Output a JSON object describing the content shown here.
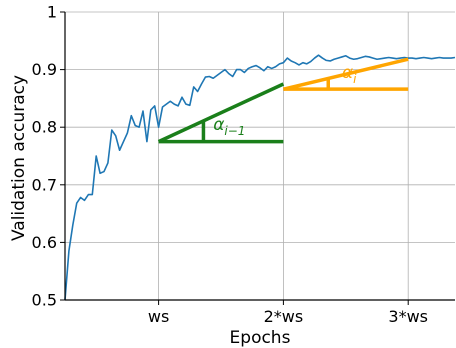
{
  "chart_data": {
    "type": "line",
    "xlabel": "Epochs",
    "ylabel": "Validation accuracy",
    "xlim": [
      0,
      100
    ],
    "ylim": [
      0.5,
      1.0
    ],
    "grid": true,
    "x_ticks": [
      {
        "value": 24,
        "label": "ws"
      },
      {
        "value": 56,
        "label": "2*ws"
      },
      {
        "value": 88,
        "label": "3*ws"
      }
    ],
    "y_ticks": [
      {
        "value": 0.5,
        "label": "0.5"
      },
      {
        "value": 0.6,
        "label": "0.6"
      },
      {
        "value": 0.7,
        "label": "0.7"
      },
      {
        "value": 0.8,
        "label": "0.8"
      },
      {
        "value": 0.9,
        "label": "0.9"
      },
      {
        "value": 1.0,
        "label": "1"
      }
    ],
    "series": [
      {
        "color": "#1f77b4",
        "x": [
          0,
          1,
          2,
          3,
          4,
          5,
          6,
          7,
          8,
          9,
          10,
          11,
          12,
          13,
          14,
          15,
          16,
          17,
          18,
          19,
          20,
          21,
          22,
          23,
          24,
          25,
          26,
          27,
          28,
          29,
          30,
          31,
          32,
          33,
          34,
          35,
          36,
          37,
          38,
          39,
          40,
          41,
          42,
          43,
          44,
          45,
          46,
          47,
          48,
          49,
          50,
          51,
          52,
          53,
          54,
          55,
          56,
          57,
          58,
          59,
          60,
          61,
          62,
          63,
          64,
          65,
          66,
          67,
          68,
          69,
          70,
          71,
          72,
          73,
          74,
          75,
          76,
          77,
          78,
          79,
          80,
          81,
          82,
          83,
          84,
          85,
          86,
          87,
          88,
          89,
          90,
          91,
          92,
          93,
          94,
          95,
          96,
          97,
          98,
          99,
          100
        ],
        "y": [
          0.5,
          0.585,
          0.63,
          0.668,
          0.678,
          0.673,
          0.683,
          0.683,
          0.75,
          0.72,
          0.723,
          0.738,
          0.795,
          0.785,
          0.76,
          0.775,
          0.79,
          0.82,
          0.803,
          0.8,
          0.828,
          0.775,
          0.83,
          0.837,
          0.8,
          0.835,
          0.84,
          0.845,
          0.84,
          0.837,
          0.852,
          0.84,
          0.838,
          0.87,
          0.862,
          0.875,
          0.887,
          0.888,
          0.885,
          0.89,
          0.895,
          0.9,
          0.893,
          0.888,
          0.9,
          0.9,
          0.895,
          0.902,
          0.905,
          0.907,
          0.903,
          0.898,
          0.905,
          0.902,
          0.905,
          0.91,
          0.912,
          0.92,
          0.915,
          0.912,
          0.908,
          0.912,
          0.91,
          0.914,
          0.92,
          0.925,
          0.92,
          0.916,
          0.915,
          0.918,
          0.92,
          0.922,
          0.924,
          0.92,
          0.918,
          0.919,
          0.921,
          0.923,
          0.922,
          0.92,
          0.918,
          0.919,
          0.92,
          0.921,
          0.92,
          0.919,
          0.92,
          0.921,
          0.92,
          0.92,
          0.919,
          0.92,
          0.921,
          0.92,
          0.919,
          0.92,
          0.921,
          0.92,
          0.92,
          0.92,
          0.921
        ]
      }
    ],
    "annotations": [
      {
        "label": "α_{i-1}",
        "color": "#1a7f1a",
        "slope_line": {
          "x": [
            24,
            56
          ],
          "y": [
            0.775,
            0.875
          ]
        },
        "base_line": {
          "x": [
            24,
            56
          ],
          "y": [
            0.775,
            0.775
          ]
        },
        "tick": {
          "x": 35.5,
          "y": [
            0.775,
            0.811
          ]
        },
        "label_pos": {
          "x": 38,
          "y": 0.795
        }
      },
      {
        "label": "α_i",
        "color": "#ffa500",
        "slope_line": {
          "x": [
            56,
            88
          ],
          "y": [
            0.866,
            0.918
          ]
        },
        "base_line": {
          "x": [
            56,
            88
          ],
          "y": [
            0.866,
            0.866
          ]
        },
        "tick": {
          "x": 67.5,
          "y": [
            0.866,
            0.885
          ]
        },
        "label_pos": {
          "x": 71,
          "y": 0.885
        }
      }
    ]
  }
}
